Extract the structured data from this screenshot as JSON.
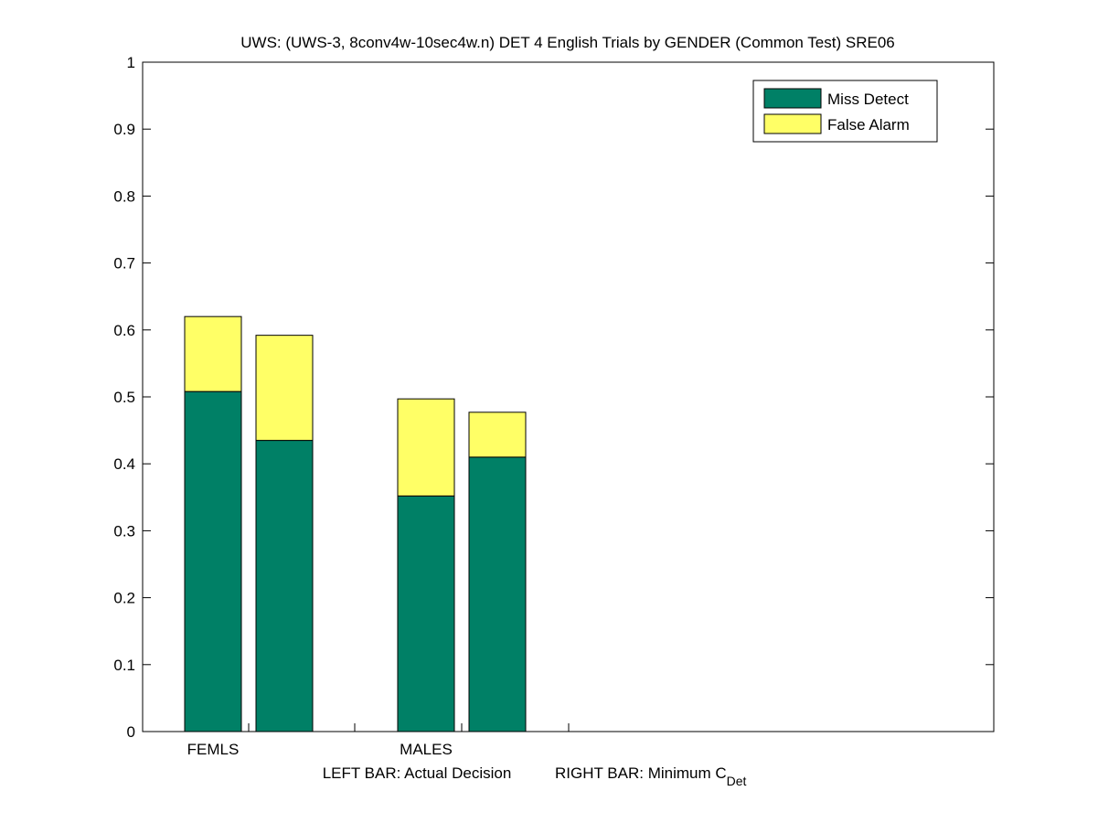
{
  "chart_data": {
    "type": "bar",
    "stacked": true,
    "title": "UWS: (UWS-3, 8conv4w-10sec4w.n) DET 4 English Trials by GENDER (Common Test) SRE06",
    "xlabel_left": "LEFT BAR: Actual Decision",
    "xlabel_right_main": "RIGHT BAR: Minimum C",
    "xlabel_right_sub": "Det",
    "ylim": [
      0,
      1
    ],
    "yticks": [
      "0",
      "0.1",
      "0.2",
      "0.3",
      "0.4",
      "0.5",
      "0.6",
      "0.7",
      "0.8",
      "0.9",
      "1"
    ],
    "grid": false,
    "legend_position": "top-right",
    "categories": [
      "FEMLS",
      "MALES"
    ],
    "series": [
      {
        "name": "Miss Detect",
        "color": "#008066"
      },
      {
        "name": "False Alarm",
        "color": "#ffff66"
      }
    ],
    "bars": [
      {
        "category": "FEMLS",
        "which": "actual",
        "miss": 0.508,
        "fa": 0.112
      },
      {
        "category": "FEMLS",
        "which": "minimum",
        "miss": 0.435,
        "fa": 0.157
      },
      {
        "category": "MALES",
        "which": "actual",
        "miss": 0.352,
        "fa": 0.145
      },
      {
        "category": "MALES",
        "which": "minimum",
        "miss": 0.41,
        "fa": 0.067
      }
    ]
  }
}
